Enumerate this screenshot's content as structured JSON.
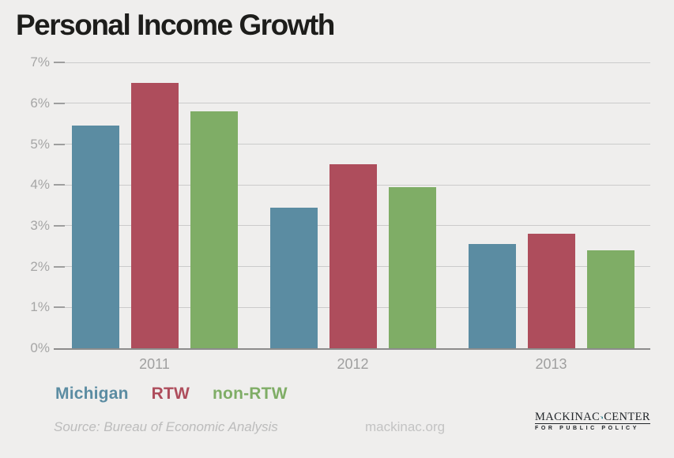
{
  "title": "Personal Income Growth",
  "chart_data": {
    "type": "bar",
    "title": "Personal Income Growth",
    "categories": [
      "2011",
      "2012",
      "2013"
    ],
    "series": [
      {
        "name": "Michigan",
        "color": "#5b8ca2",
        "values": [
          5.45,
          3.45,
          2.55
        ]
      },
      {
        "name": "RTW",
        "color": "#ae4d5c",
        "values": [
          6.5,
          4.5,
          2.8
        ]
      },
      {
        "name": "non-RTW",
        "color": "#7fad66",
        "values": [
          5.8,
          3.95,
          2.4
        ]
      }
    ],
    "xlabel": "",
    "ylabel": "",
    "ylim": [
      0,
      7
    ],
    "yticks": [
      "7%",
      "6%",
      "5%",
      "4%",
      "3%",
      "2%",
      "1%",
      "0%"
    ],
    "grid": true,
    "legend_position": "bottom-left"
  },
  "footer": {
    "source": "Source: Bureau of Economic Analysis",
    "website": "mackinac.org"
  },
  "logo": {
    "name_left": "MACKINAC",
    "name_right": "CENTER",
    "tagline": "FOR PUBLIC POLICY",
    "icon_color": "#2e7d8c",
    "text_color": "#22262a"
  },
  "colors": {
    "background": "#efeeed",
    "title_text": "#1d1d1b",
    "axis_text": "#a6a6a6",
    "gridline": "#cbcbcb",
    "baseline": "#8c8c8c",
    "source_text": "#bcbcbc"
  }
}
